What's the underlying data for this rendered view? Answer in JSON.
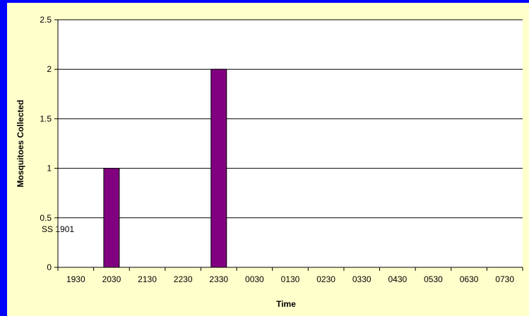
{
  "chart_data": {
    "type": "bar",
    "categories": [
      "1930",
      "2030",
      "2130",
      "2230",
      "2330",
      "0030",
      "0130",
      "0230",
      "0330",
      "0430",
      "0530",
      "0630",
      "0730"
    ],
    "values": [
      0,
      1,
      0,
      0,
      2,
      0,
      0,
      0,
      0,
      0,
      0,
      0,
      0
    ],
    "xlabel": "Time",
    "ylabel": "Mosquitoes Collected",
    "ylim": [
      0,
      2.5
    ],
    "yticks": [
      0,
      0.5,
      1,
      1.5,
      2,
      2.5
    ],
    "grid": true,
    "annotation": "SS 1901",
    "colors": {
      "bar": "#800080",
      "bar_edge": "#000000",
      "plot_background": "#ffffff",
      "chart_background": "#ffffcc",
      "page_background": "#0000ff"
    }
  }
}
